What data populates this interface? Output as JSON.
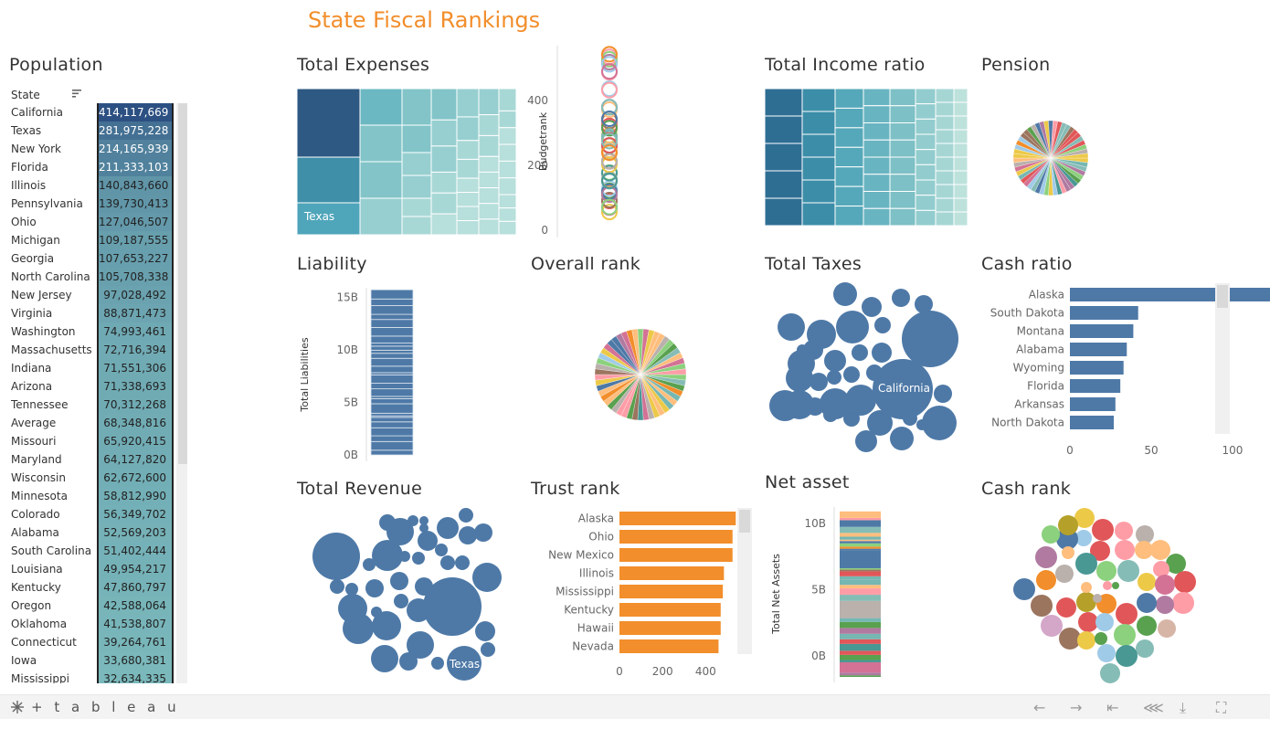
{
  "title": "State Fiscal Rankings",
  "sheets": {
    "population": "Population",
    "total_expenses": "Total Expenses",
    "total_income_ratio": "Total Income ratio",
    "pension": "Pension",
    "liability": "Liability",
    "overall_rank": "Overall rank",
    "total_taxes": "Total Taxes",
    "cash_ratio": "Cash ratio",
    "total_revenue": "Total Revenue",
    "trust_rank": "Trust rank",
    "net_asset": "Net asset",
    "cash_rank": "Cash rank"
  },
  "population": {
    "column_header": "State",
    "rows": [
      {
        "state": "California",
        "value": "414,117,669"
      },
      {
        "state": "Texas",
        "value": "281,975,228"
      },
      {
        "state": "New York",
        "value": "214,165,939"
      },
      {
        "state": "Florida",
        "value": "211,333,103"
      },
      {
        "state": "Illinois",
        "value": "140,843,660"
      },
      {
        "state": "Pennsylvania",
        "value": "139,730,413"
      },
      {
        "state": "Ohio",
        "value": "127,046,507"
      },
      {
        "state": "Michigan",
        "value": "109,187,555"
      },
      {
        "state": "Georgia",
        "value": "107,653,227"
      },
      {
        "state": "North Carolina",
        "value": "105,708,338"
      },
      {
        "state": "New Jersey",
        "value": "97,028,492"
      },
      {
        "state": "Virginia",
        "value": "88,871,473"
      },
      {
        "state": "Washington",
        "value": "74,993,461"
      },
      {
        "state": "Massachusetts",
        "value": "72,716,394"
      },
      {
        "state": "Indiana",
        "value": "71,551,306"
      },
      {
        "state": "Arizona",
        "value": "71,338,693"
      },
      {
        "state": "Tennessee",
        "value": "70,312,268"
      },
      {
        "state": "Average",
        "value": "68,348,816"
      },
      {
        "state": "Missouri",
        "value": "65,920,415"
      },
      {
        "state": "Maryland",
        "value": "64,127,820"
      },
      {
        "state": "Wisconsin",
        "value": "62,672,600"
      },
      {
        "state": "Minnesota",
        "value": "58,812,990"
      },
      {
        "state": "Colorado",
        "value": "56,349,702"
      },
      {
        "state": "Alabama",
        "value": "52,569,203"
      },
      {
        "state": "South Carolina",
        "value": "51,402,444"
      },
      {
        "state": "Louisiana",
        "value": "49,954,217"
      },
      {
        "state": "Kentucky",
        "value": "47,860,797"
      },
      {
        "state": "Oregon",
        "value": "42,588,064"
      },
      {
        "state": "Oklahoma",
        "value": "41,538,807"
      },
      {
        "state": "Connecticut",
        "value": "39,264,761"
      },
      {
        "state": "Iowa",
        "value": "33,680,381"
      },
      {
        "state": "Mississippi",
        "value": "32,634,335"
      }
    ]
  },
  "treemap_labels": {
    "total_expenses_largest_label": "Texas"
  },
  "budgetrank_axis": {
    "label": "Budgetrank",
    "ticks": [
      "0",
      "200",
      "400"
    ]
  },
  "liability_axis": {
    "label": "Total Liabilities",
    "ticks": [
      "0B",
      "5B",
      "10B",
      "15B"
    ]
  },
  "net_asset_axis": {
    "label": "Total Net Assets",
    "ticks": [
      "0B",
      "5B",
      "10B"
    ]
  },
  "bubble_labels": {
    "total_taxes": "California",
    "total_revenue": "Texas"
  },
  "chart_data": [
    {
      "type": "bar",
      "name": "Cash ratio",
      "categories": [
        "Alaska",
        "South Dakota",
        "Montana",
        "Alabama",
        "Wyoming",
        "Florida",
        "Arkansas",
        "North Dakota"
      ],
      "values": [
        135,
        42,
        39,
        35,
        33,
        31,
        28,
        27
      ],
      "xticks": [
        "0",
        "50",
        "100"
      ],
      "xlim": [
        0,
        145
      ],
      "color": "#4e79a7"
    },
    {
      "type": "bar",
      "name": "Trust rank",
      "categories": [
        "Alaska",
        "Ohio",
        "New Mexico",
        "Illinois",
        "Mississippi",
        "Kentucky",
        "Hawaii",
        "Nevada"
      ],
      "values": [
        540,
        525,
        525,
        485,
        480,
        470,
        470,
        460
      ],
      "xticks": [
        "0",
        "200",
        "400"
      ],
      "xlim": [
        0,
        560
      ],
      "color": "#f28e2b"
    }
  ],
  "footer": {
    "brand": "+ t a b l e a u"
  },
  "colors": {
    "accent": "#f28e2b",
    "blue": "#4e79a7",
    "teal": "#86c8cc"
  }
}
